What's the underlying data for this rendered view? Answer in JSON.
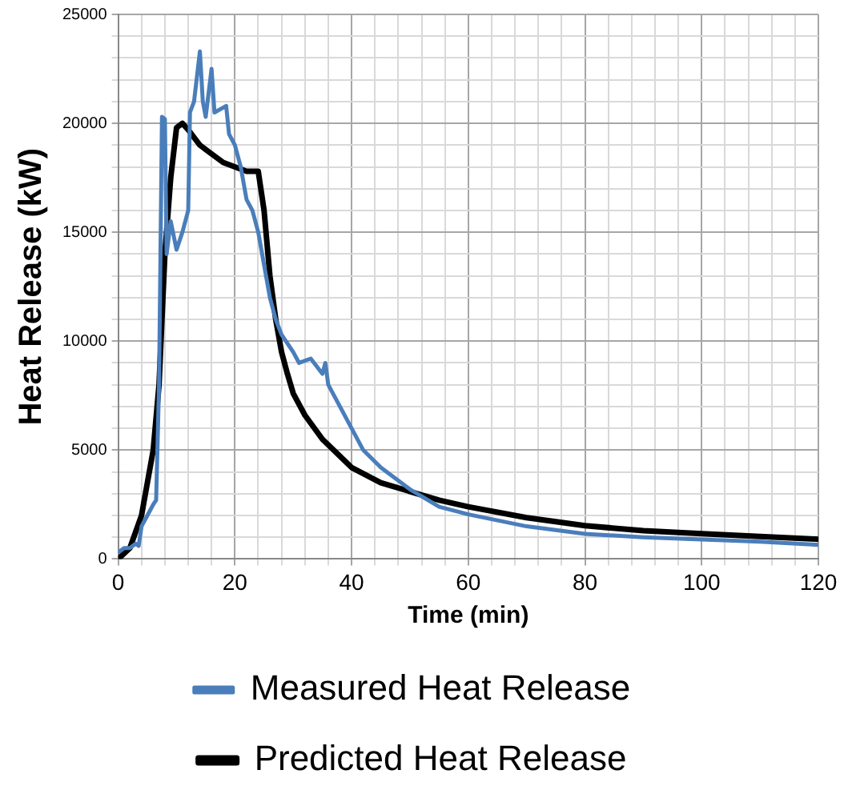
{
  "chart_data": {
    "type": "line",
    "xlabel": "Time (min)",
    "ylabel": "Heat Release (kW)",
    "xlim": [
      0,
      120
    ],
    "ylim": [
      0,
      25000
    ],
    "xticks": [
      0,
      {
        "value": 4,
        "label": null
      },
      {
        "value": 8,
        "label": null
      },
      {
        "value": 12,
        "label": null
      },
      {
        "value": 16,
        "label": null
      },
      20,
      {
        "value": 24,
        "label": null
      },
      {
        "value": 28,
        "label": null
      },
      {
        "value": 32,
        "label": null
      },
      {
        "value": 36,
        "label": null
      },
      40,
      {
        "value": 44,
        "label": null
      },
      {
        "value": 48,
        "label": null
      },
      {
        "value": 52,
        "label": null
      },
      {
        "value": 56,
        "label": null
      },
      60,
      {
        "value": 64,
        "label": null
      },
      {
        "value": 68,
        "label": null
      },
      {
        "value": 72,
        "label": null
      },
      {
        "value": 76,
        "label": null
      },
      80,
      {
        "value": 84,
        "label": null
      },
      {
        "value": 88,
        "label": null
      },
      {
        "value": 92,
        "label": null
      },
      {
        "value": 96,
        "label": null
      },
      100,
      {
        "value": 104,
        "label": null
      },
      {
        "value": 108,
        "label": null
      },
      {
        "value": 112,
        "label": null
      },
      {
        "value": 116,
        "label": null
      },
      120
    ],
    "yticks": [
      0,
      {
        "value": 1000,
        "label": null
      },
      {
        "value": 2000,
        "label": null
      },
      {
        "value": 3000,
        "label": null
      },
      {
        "value": 4000,
        "label": null
      },
      5000,
      {
        "value": 6000,
        "label": null
      },
      {
        "value": 7000,
        "label": null
      },
      {
        "value": 8000,
        "label": null
      },
      {
        "value": 9000,
        "label": null
      },
      10000,
      {
        "value": 11000,
        "label": null
      },
      {
        "value": 12000,
        "label": null
      },
      {
        "value": 13000,
        "label": null
      },
      {
        "value": 14000,
        "label": null
      },
      15000,
      {
        "value": 16000,
        "label": null
      },
      {
        "value": 17000,
        "label": null
      },
      {
        "value": 18000,
        "label": null
      },
      {
        "value": 19000,
        "label": null
      },
      20000,
      {
        "value": 21000,
        "label": null
      },
      {
        "value": 22000,
        "label": null
      },
      {
        "value": 23000,
        "label": null
      },
      {
        "value": 24000,
        "label": null
      },
      25000
    ],
    "grid": true,
    "legend": "bottom",
    "marker": "none",
    "line_style": "solid",
    "series": [
      {
        "name": "Measured Heat Release",
        "color": "#4a7ebb",
        "x": [
          0,
          1,
          2,
          3,
          3.5,
          4,
          5,
          6,
          6.5,
          7,
          7.5,
          8,
          8.3,
          9,
          10,
          11,
          12,
          12.3,
          13,
          14,
          14.5,
          15,
          16,
          16.5,
          18.5,
          19,
          20,
          21,
          22,
          23,
          24,
          25,
          26,
          27,
          28,
          30,
          31,
          33,
          35,
          35.5,
          36,
          38,
          40,
          42,
          45,
          50,
          55,
          60,
          70,
          80,
          90,
          100,
          110,
          120
        ],
        "values": [
          300,
          500,
          500,
          700,
          600,
          1500,
          2000,
          2500,
          2700,
          8000,
          20300,
          20200,
          14000,
          15500,
          14200,
          15000,
          16000,
          20500,
          21000,
          23300,
          21000,
          20300,
          22500,
          20500,
          20800,
          19500,
          19000,
          18000,
          16500,
          16000,
          15000,
          13500,
          12000,
          11000,
          10300,
          9500,
          9000,
          9200,
          8500,
          9000,
          8000,
          7000,
          6000,
          5000,
          4200,
          3200,
          2400,
          2050,
          1500,
          1150,
          1000,
          900,
          800,
          650
        ]
      },
      {
        "name": "Predicted Heat Release",
        "color": "#000000",
        "x": [
          0,
          2,
          4,
          6,
          7,
          8,
          9,
          10,
          11,
          12,
          14,
          16,
          18,
          20,
          22,
          24,
          25,
          26,
          27,
          28,
          29,
          30,
          32,
          35,
          40,
          45,
          50,
          55,
          60,
          70,
          80,
          90,
          100,
          110,
          120
        ],
        "values": [
          0,
          500,
          2000,
          5000,
          8000,
          14000,
          17500,
          19800,
          20000,
          19700,
          19000,
          18600,
          18200,
          18000,
          17800,
          17800,
          16000,
          13000,
          11000,
          9500,
          8500,
          7600,
          6600,
          5500,
          4200,
          3500,
          3100,
          2700,
          2400,
          1900,
          1530,
          1300,
          1160,
          1030,
          910
        ]
      }
    ]
  }
}
